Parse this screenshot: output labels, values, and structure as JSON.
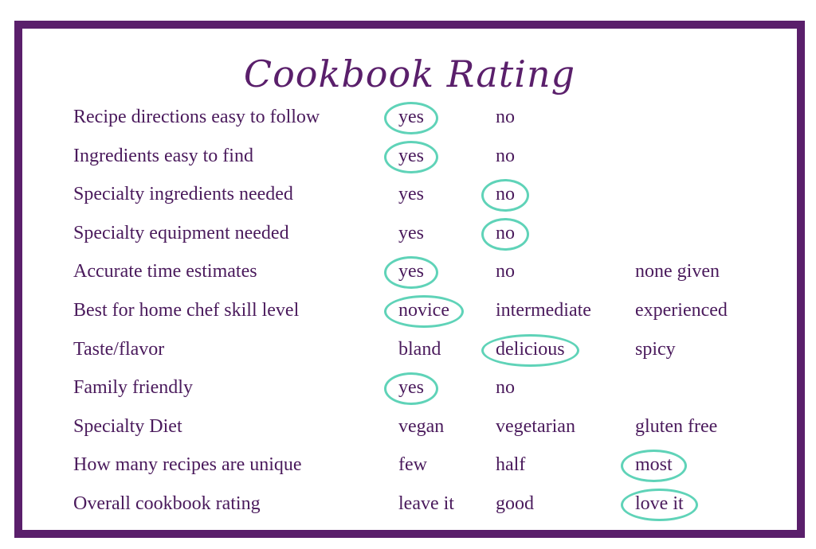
{
  "title": "Cookbook Rating",
  "colors": {
    "border": "#5a1f6b",
    "text": "#4a1a5c",
    "circle": "#5fd3b8"
  },
  "rows": [
    {
      "question": "Recipe directions easy to follow",
      "options": [
        "yes",
        "no",
        ""
      ],
      "selected": 0
    },
    {
      "question": "Ingredients easy to find",
      "options": [
        "yes",
        "no",
        ""
      ],
      "selected": 0
    },
    {
      "question": "Specialty ingredients needed",
      "options": [
        "yes",
        "no",
        ""
      ],
      "selected": 1
    },
    {
      "question": "Specialty equipment needed",
      "options": [
        "yes",
        "no",
        ""
      ],
      "selected": 1
    },
    {
      "question": "Accurate time estimates",
      "options": [
        "yes",
        "no",
        "none given"
      ],
      "selected": 0
    },
    {
      "question": "Best for home chef skill level",
      "options": [
        "novice",
        "intermediate",
        "experienced"
      ],
      "selected": 0
    },
    {
      "question": "Taste/flavor",
      "options": [
        "bland",
        "delicious",
        "spicy"
      ],
      "selected": 1
    },
    {
      "question": "Family friendly",
      "options": [
        "yes",
        "no",
        ""
      ],
      "selected": 0
    },
    {
      "question": "Specialty Diet",
      "options": [
        "vegan",
        "vegetarian",
        "gluten free"
      ],
      "selected": -1
    },
    {
      "question": "How many recipes are unique",
      "options": [
        "few",
        "half",
        "most"
      ],
      "selected": 2
    },
    {
      "question": "Overall cookbook rating",
      "options": [
        "leave it",
        "good",
        "love it"
      ],
      "selected": 2
    }
  ]
}
